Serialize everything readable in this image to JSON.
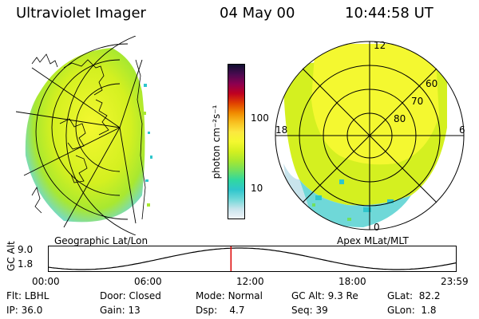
{
  "header": {
    "instrument": "Ultraviolet Imager",
    "date": "04 May 00",
    "time": "10:44:58 UT"
  },
  "left_panel": {
    "caption": "Geographic Lat/Lon"
  },
  "right_panel": {
    "caption": "Apex MLat/MLT",
    "mlt_labels": [
      "12",
      "18",
      "6",
      "0"
    ],
    "mlat_labels": [
      "60",
      "70",
      "80"
    ]
  },
  "colorbar": {
    "unit_label": "photon cm⁻²s⁻¹",
    "tick_labels": [
      "100",
      "10"
    ],
    "colors": [
      "#f0f4f8",
      "#c8e4ec",
      "#6fd8d8",
      "#2fc6cc",
      "#30d8a0",
      "#70e060",
      "#a8e830",
      "#d4f020",
      "#f4f830",
      "#fce840",
      "#f8c020",
      "#f08a00",
      "#e04000",
      "#c00020",
      "#8c0050",
      "#4a0a50",
      "#101030"
    ]
  },
  "gc_alt": {
    "axis_label": "GC Alt",
    "y_ticks": [
      "9.0",
      "1.8"
    ],
    "x_ticks": [
      "00:00",
      "06:00",
      "12:00",
      "18:00",
      "23:59"
    ],
    "current_time_hours": 10.75
  },
  "footer": {
    "row1": [
      {
        "label": "Flt:",
        "value": "LBHL"
      },
      {
        "label": "Door:",
        "value": "Closed"
      },
      {
        "label": "Mode:",
        "value": "Normal"
      },
      {
        "label": "GC Alt:",
        "value": "9.3 Re"
      },
      {
        "label": "GLat:",
        "value": "82.2"
      }
    ],
    "row2": [
      {
        "label": "IP:",
        "value": "36.0"
      },
      {
        "label": "Gain:",
        "value": "13"
      },
      {
        "label": "Dsp:",
        "value": "4.7"
      },
      {
        "label": "Seq:",
        "value": "39"
      },
      {
        "label": "GLon:",
        "value": "1.8"
      }
    ]
  },
  "colors": {
    "aurora_bright": "#f4f830",
    "aurora_mid": "#a8e830",
    "aurora_low": "#30d8a0",
    "aurora_edge": "#2fc6cc",
    "time_marker": "#dd0000"
  }
}
